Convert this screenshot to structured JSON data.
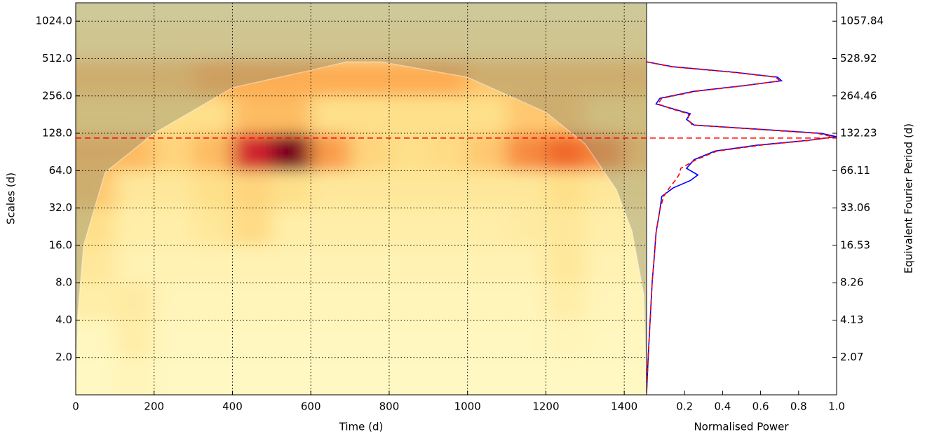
{
  "chart_data": [
    {
      "type": "heatmap",
      "x_label": "Time (d)",
      "y_label": "Scales (d)",
      "xlim": [
        0,
        1457
      ],
      "xticks": [
        0,
        200,
        400,
        600,
        800,
        1000,
        1200,
        1400
      ],
      "ylim": [
        1,
        1440
      ],
      "ylog": true,
      "yticks": [
        {
          "value": 2,
          "label": "2.0"
        },
        {
          "value": 4,
          "label": "4.0"
        },
        {
          "value": 8,
          "label": "8.0"
        },
        {
          "value": 16,
          "label": "16.0"
        },
        {
          "value": 32,
          "label": "32.0"
        },
        {
          "value": 64,
          "label": "64.0"
        },
        {
          "value": 128,
          "label": "128.0"
        },
        {
          "value": 256,
          "label": "256.0"
        },
        {
          "value": 512,
          "label": "512.0"
        },
        {
          "value": 1024,
          "label": "1024.0"
        }
      ],
      "grid": true,
      "xbins": [
        0,
        100,
        200,
        300,
        400,
        500,
        600,
        700,
        800,
        900,
        1000,
        1100,
        1200,
        1300,
        1400,
        1457
      ],
      "ybins": [
        1,
        2,
        4,
        8,
        16,
        32,
        64,
        128,
        256,
        512,
        1024,
        1440
      ],
      "zlim": [
        0,
        1
      ],
      "colormap": [
        "#fffbc8",
        "#fee08a",
        "#fdae55",
        "#f06a2c",
        "#c8102e",
        "#7a0020"
      ],
      "z": [
        [
          0.02,
          0.05,
          0.02,
          0.02,
          0.02,
          0.02,
          0.02,
          0.02,
          0.02,
          0.02,
          0.02,
          0.02,
          0.02,
          0.02,
          0.02
        ],
        [
          0.03,
          0.1,
          0.03,
          0.03,
          0.03,
          0.03,
          0.03,
          0.03,
          0.03,
          0.03,
          0.03,
          0.03,
          0.05,
          0.03,
          0.03
        ],
        [
          0.1,
          0.12,
          0.05,
          0.05,
          0.05,
          0.05,
          0.05,
          0.05,
          0.05,
          0.05,
          0.05,
          0.05,
          0.1,
          0.05,
          0.05
        ],
        [
          0.15,
          0.07,
          0.07,
          0.07,
          0.07,
          0.07,
          0.07,
          0.07,
          0.07,
          0.07,
          0.07,
          0.07,
          0.15,
          0.07,
          0.07
        ],
        [
          0.2,
          0.1,
          0.1,
          0.15,
          0.22,
          0.1,
          0.1,
          0.1,
          0.1,
          0.1,
          0.1,
          0.12,
          0.15,
          0.1,
          0.1
        ],
        [
          0.3,
          0.15,
          0.15,
          0.2,
          0.25,
          0.2,
          0.15,
          0.15,
          0.15,
          0.15,
          0.15,
          0.15,
          0.2,
          0.15,
          0.15
        ],
        [
          0.35,
          0.35,
          0.25,
          0.35,
          0.75,
          1.0,
          0.45,
          0.25,
          0.2,
          0.22,
          0.3,
          0.5,
          0.6,
          0.5,
          0.3
        ],
        [
          0.2,
          0.2,
          0.2,
          0.2,
          0.35,
          0.35,
          0.2,
          0.2,
          0.2,
          0.2,
          0.2,
          0.3,
          0.3,
          0.2,
          0.2
        ],
        [
          0.3,
          0.3,
          0.3,
          0.4,
          0.4,
          0.4,
          0.4,
          0.4,
          0.4,
          0.4,
          0.3,
          0.3,
          0.3,
          0.3,
          0.3
        ],
        [
          0.1,
          0.1,
          0.1,
          0.1,
          0.1,
          0.1,
          0.1,
          0.1,
          0.1,
          0.1,
          0.1,
          0.1,
          0.1,
          0.1,
          0.1
        ],
        [
          0.05,
          0.05,
          0.05,
          0.05,
          0.05,
          0.05,
          0.05,
          0.05,
          0.05,
          0.05,
          0.05,
          0.05,
          0.05,
          0.05,
          0.05
        ]
      ],
      "cone": {
        "color": "#8c8c70",
        "x": [
          0,
          5,
          20,
          75,
          200,
          400,
          600,
          690,
          780,
          1000,
          1200,
          1300,
          1380,
          1420,
          1450,
          1457
        ],
        "values": [
          1,
          4.3,
          16,
          62,
          128,
          298,
          412,
          481,
          481,
          362,
          189,
          105,
          45,
          20.7,
          6.4,
          1
        ]
      }
    },
    {
      "type": "line",
      "orientation": "horizontal",
      "x_label": "Normalised Power",
      "y_label": "Equivalent Fourier Period (d)",
      "xlim": [
        0,
        1
      ],
      "xticks": [
        0.2,
        0.4,
        0.6,
        0.8,
        {
          "value": 1,
          "label": "1.0"
        }
      ],
      "ylim": [
        1.033,
        1487.6
      ],
      "ylog": true,
      "yticks": [
        2.07,
        4.13,
        8.26,
        16.53,
        33.06,
        66.11,
        132.23,
        264.46,
        528.92,
        1057.84
      ],
      "y": [
        497.5,
        454,
        409,
        374,
        350,
        320,
        288,
        253,
        228,
        208,
        190,
        171,
        154,
        143,
        132,
        124,
        116,
        106,
        95,
        81,
        69,
        61,
        55,
        48,
        41,
        32,
        21,
        13,
        8.6,
        4.5,
        2.3,
        1.07
      ],
      "series": [
        {
          "color": "#0000ff",
          "dash": false,
          "values": [
            0,
            0.14,
            0.47,
            0.69,
            0.71,
            0.51,
            0.25,
            0.07,
            0.05,
            0.14,
            0.23,
            0.21,
            0.25,
            0.58,
            0.92,
            1.0,
            0.85,
            0.58,
            0.36,
            0.25,
            0.21,
            0.27,
            0.23,
            0.14,
            0.08,
            0.07,
            0.05,
            0.04,
            0.03,
            0.02,
            0.01,
            0
          ]
        },
        {
          "color": "#ff0000",
          "dash": true,
          "values": [
            0,
            0.13,
            0.46,
            0.68,
            0.7,
            0.52,
            0.26,
            0.08,
            0.06,
            0.13,
            0.22,
            0.22,
            0.24,
            0.56,
            0.9,
            0.98,
            0.86,
            0.6,
            0.37,
            0.26,
            0.18,
            0.17,
            0.15,
            0.12,
            0.09,
            0.07,
            0.05,
            0.04,
            0.03,
            0.02,
            0.01,
            0
          ]
        }
      ],
      "reference_period": 121,
      "reference_color": "#ff0000"
    }
  ]
}
